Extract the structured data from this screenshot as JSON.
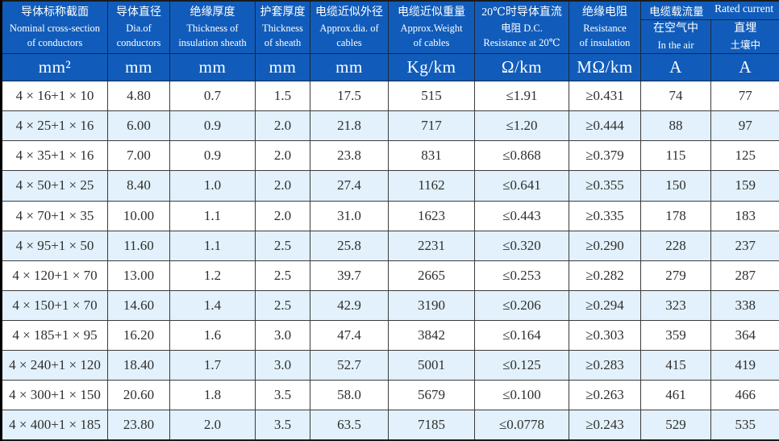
{
  "colors": {
    "header_bg": "#115cba",
    "header_text": "#ffffff",
    "row_bg": "#ffffff",
    "row_alt_bg": "#e2f1fb",
    "grid_line": "#3c3c3c",
    "text": "#2f2f2f"
  },
  "chart_data": {
    "type": "table",
    "group_header": {
      "zh": "电缆载流量",
      "en": "Rated current"
    },
    "columns": [
      {
        "zh": "导体标称截面",
        "en": "Nominal cross-section\nof conductors",
        "unit": "mm²"
      },
      {
        "zh": "导体直径",
        "en": "Dia.of\nconductors",
        "unit": "mm"
      },
      {
        "zh": "绝缘厚度",
        "en": "Thickness of\ninsulation sheath",
        "unit": "mm"
      },
      {
        "zh": "护套厚度",
        "en": "Thickness\nof sheath",
        "unit": "mm"
      },
      {
        "zh": "电缆近似外径",
        "en": "Approx.dia. of\ncables",
        "unit": "mm"
      },
      {
        "zh": "电缆近似重量",
        "en": "Approx.Weight\nof cables",
        "unit": "Kg/km"
      },
      {
        "zh": "20℃时导体直流",
        "en": "电阻 D.C.\nResistance at 20℃",
        "unit": "Ω/km"
      },
      {
        "zh": "绝缘电阻",
        "en": "Resistance\nof insulation",
        "unit": "MΩ/km"
      },
      {
        "zh": "在空气中",
        "en": "In the air",
        "unit": "A"
      },
      {
        "zh": "直埋",
        "en": "土壤中",
        "unit": "A"
      }
    ],
    "rows": [
      [
        "4 × 16+1 × 10",
        "4.80",
        "0.7",
        "1.5",
        "17.5",
        "515",
        "≤1.91",
        "≥0.431",
        "74",
        "77"
      ],
      [
        "4 × 25+1 × 16",
        "6.00",
        "0.9",
        "2.0",
        "21.8",
        "717",
        "≤1.20",
        "≥0.444",
        "88",
        "97"
      ],
      [
        "4 × 35+1 × 16",
        "7.00",
        "0.9",
        "2.0",
        "23.8",
        "831",
        "≤0.868",
        "≥0.379",
        "115",
        "125"
      ],
      [
        "4 × 50+1 × 25",
        "8.40",
        "1.0",
        "2.0",
        "27.4",
        "1162",
        "≤0.641",
        "≥0.355",
        "150",
        "159"
      ],
      [
        "4 × 70+1 × 35",
        "10.00",
        "1.1",
        "2.0",
        "31.0",
        "1623",
        "≤0.443",
        "≥0.335",
        "178",
        "183"
      ],
      [
        "4 × 95+1 × 50",
        "11.60",
        "1.1",
        "2.5",
        "25.8",
        "2231",
        "≤0.320",
        "≥0.290",
        "228",
        "237"
      ],
      [
        "4 × 120+1 × 70",
        "13.00",
        "1.2",
        "2.5",
        "39.7",
        "2665",
        "≤0.253",
        "≥0.282",
        "279",
        "287"
      ],
      [
        "4 × 150+1 × 70",
        "14.60",
        "1.4",
        "2.5",
        "42.9",
        "3190",
        "≤0.206",
        "≥0.294",
        "323",
        "338"
      ],
      [
        "4 × 185+1 × 95",
        "16.20",
        "1.6",
        "3.0",
        "47.4",
        "3842",
        "≤0.164",
        "≥0.303",
        "359",
        "364"
      ],
      [
        "4 × 240+1 × 120",
        "18.40",
        "1.7",
        "3.0",
        "52.7",
        "5001",
        "≤0.125",
        "≥0.283",
        "415",
        "419"
      ],
      [
        "4 × 300+1 × 150",
        "20.60",
        "1.8",
        "3.5",
        "58.0",
        "5679",
        "≤0.100",
        "≥0.263",
        "461",
        "466"
      ],
      [
        "4 × 400+1 × 185",
        "23.80",
        "2.0",
        "3.5",
        "63.5",
        "7185",
        "≤0.0778",
        "≥0.243",
        "529",
        "535"
      ]
    ]
  }
}
